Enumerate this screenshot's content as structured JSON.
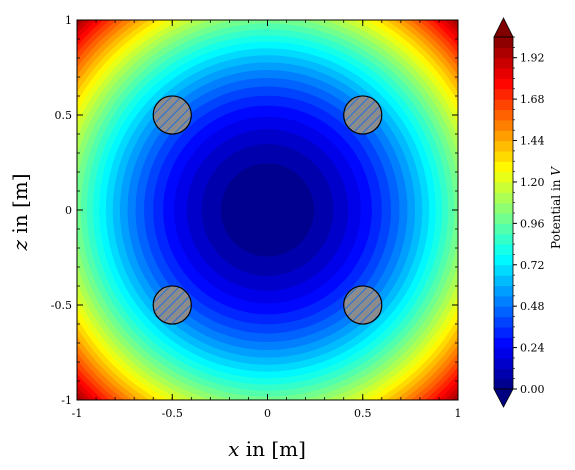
{
  "chart_data": {
    "type": "heatmap",
    "plot_kind": "filled-contour",
    "x": {
      "min": -1,
      "max": 1,
      "ticks": [
        -1,
        -0.5,
        0,
        0.5,
        1
      ],
      "tick_labels": [
        "-1",
        "-0.5",
        "0",
        "0.5",
        "1"
      ]
    },
    "y": {
      "min": -1,
      "max": 1,
      "ticks": [
        -1,
        -0.5,
        0,
        0.5,
        1
      ],
      "tick_labels": [
        "-1",
        "-0.5",
        "0",
        "0.5",
        "1"
      ]
    },
    "xlabel": {
      "var": "x",
      "rest": " in [m]"
    },
    "ylabel": {
      "var": "z",
      "rest": " in [m]"
    },
    "colorbar": {
      "min": 0.0,
      "max": 2.04,
      "step": 0.06,
      "extend": "both",
      "colormap": "jet",
      "ticks": [
        0.0,
        0.24,
        0.48,
        0.72,
        0.96,
        1.2,
        1.44,
        1.68,
        1.92
      ],
      "tick_labels": [
        "0.00",
        "0.24",
        "0.48",
        "0.72",
        "0.96",
        "1.20",
        "1.44",
        "1.68",
        "1.92"
      ],
      "label": {
        "pre": "Potential in ",
        "var": "V"
      }
    },
    "field": {
      "form": "radial-quadratic",
      "value_at_center": 0.0,
      "value_at_edge_midpoint": 1.0,
      "value_at_corner": 2.0
    },
    "electrodes": [
      {
        "x": -0.5,
        "z": 0.5
      },
      {
        "x": 0.5,
        "z": 0.5
      },
      {
        "x": -0.5,
        "z": -0.5
      },
      {
        "x": 0.5,
        "z": -0.5
      }
    ],
    "electrode_radius": 0.1,
    "electrode_fill": "#8c8c8c",
    "electrode_hatch_color": "#2a6fd6",
    "grid": false,
    "legend": "none"
  }
}
